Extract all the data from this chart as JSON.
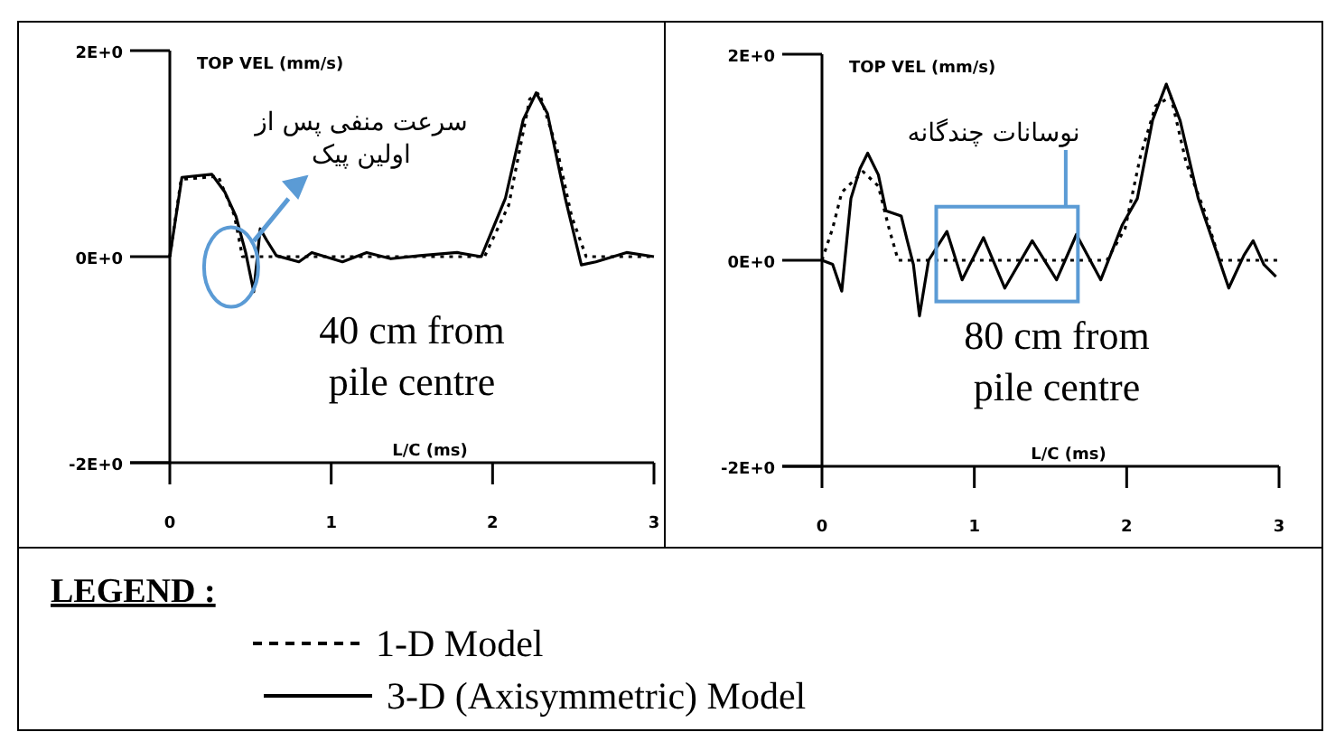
{
  "chart_data": [
    {
      "type": "line",
      "ylabel": "TOP VEL (mm/s)",
      "xlabel": "L/C (ms)",
      "xlim": [
        0,
        3
      ],
      "xticks": [
        0,
        1,
        2,
        3
      ],
      "ylim": [
        -2,
        2
      ],
      "yticks": [
        {
          "value": -2,
          "label": "-2E+0"
        },
        {
          "value": 0,
          "label": "0E+0"
        },
        {
          "value": 2,
          "label": "2E+0"
        }
      ],
      "legend": "bottom",
      "legend_title": "LEGEND :",
      "annotations": [
        "سرعت منفی پس از\nاولین پیک",
        "40 cm from\npile centre"
      ],
      "series": [
        {
          "name": "1-D Model",
          "color": "#000000",
          "line_style": "dotted",
          "x": [
            0,
            0.07,
            0.3,
            0.4,
            0.45,
            1.95,
            2.1,
            2.23,
            2.29,
            2.4,
            2.49,
            2.58,
            3
          ],
          "values": [
            0,
            0.75,
            0.78,
            0.4,
            0,
            0,
            0.5,
            1.53,
            1.59,
            1.04,
            0.39,
            0,
            0
          ]
        },
        {
          "name": "3-D (Axisymmetric) Model",
          "color": "#000000",
          "line_style": "solid",
          "x": [
            0,
            0.075,
            0.26,
            0.34,
            0.41,
            0.47,
            0.52,
            0.56,
            0.6,
            0.66,
            0.8,
            0.88,
            1.07,
            1.22,
            1.37,
            1.55,
            1.78,
            1.93,
            2.08,
            2.19,
            2.27,
            2.34,
            2.45,
            2.55,
            2.64,
            2.83,
            3
          ],
          "values": [
            0,
            0.77,
            0.8,
            0.63,
            0.39,
            0.04,
            -0.34,
            0.27,
            0.16,
            0.01,
            -0.05,
            0.04,
            -0.05,
            0.04,
            -0.02,
            0.01,
            0.04,
            0,
            0.57,
            1.33,
            1.59,
            1.39,
            0.57,
            -0.08,
            -0.05,
            0.04,
            0
          ]
        }
      ]
    },
    {
      "type": "line",
      "ylabel": "TOP VEL (mm/s)",
      "xlabel": "L/C (ms)",
      "xlim": [
        0,
        3
      ],
      "xticks": [
        0,
        1,
        2,
        3
      ],
      "ylim": [
        -2,
        2
      ],
      "yticks": [
        {
          "value": -2,
          "label": "-2E+0"
        },
        {
          "value": 0,
          "label": "0E+0"
        },
        {
          "value": 2,
          "label": "2E+0"
        }
      ],
      "annotations": [
        "نوسانات چندگانه",
        "80 cm from\npile centre"
      ],
      "series": [
        {
          "color": "#000000",
          "line_style": "dotted",
          "x": [
            0,
            0.07,
            0.13,
            0.27,
            0.37,
            0.44,
            0.5,
            1.87,
            1.99,
            2.09,
            2.19,
            2.29,
            2.39,
            2.51,
            2.61,
            3
          ],
          "values": [
            0,
            0.31,
            0.66,
            0.86,
            0.72,
            0.31,
            0,
            0,
            0.31,
            1.01,
            1.5,
            1.59,
            0.95,
            0.48,
            0,
            0
          ]
        },
        {
          "color": "#000000",
          "line_style": "solid",
          "x": [
            0,
            0.07,
            0.13,
            0.19,
            0.25,
            0.3,
            0.37,
            0.42,
            0.52,
            0.56,
            0.6,
            0.64,
            0.7,
            0.82,
            0.92,
            1.06,
            1.2,
            1.38,
            1.54,
            1.67,
            1.83,
            1.97,
            2.07,
            2.17,
            2.26,
            2.35,
            2.47,
            2.59,
            2.67,
            2.77,
            2.83,
            2.9,
            2.98
          ],
          "values": [
            0,
            -0.04,
            -0.3,
            0.6,
            0.89,
            1.04,
            0.83,
            0.48,
            0.43,
            0.19,
            -0.04,
            -0.54,
            0,
            0.28,
            -0.19,
            0.22,
            -0.27,
            0.19,
            -0.19,
            0.25,
            -0.19,
            0.34,
            0.6,
            1.36,
            1.71,
            1.36,
            0.6,
            0.08,
            -0.27,
            0.05,
            0.19,
            -0.04,
            -0.16
          ]
        }
      ]
    }
  ]
}
